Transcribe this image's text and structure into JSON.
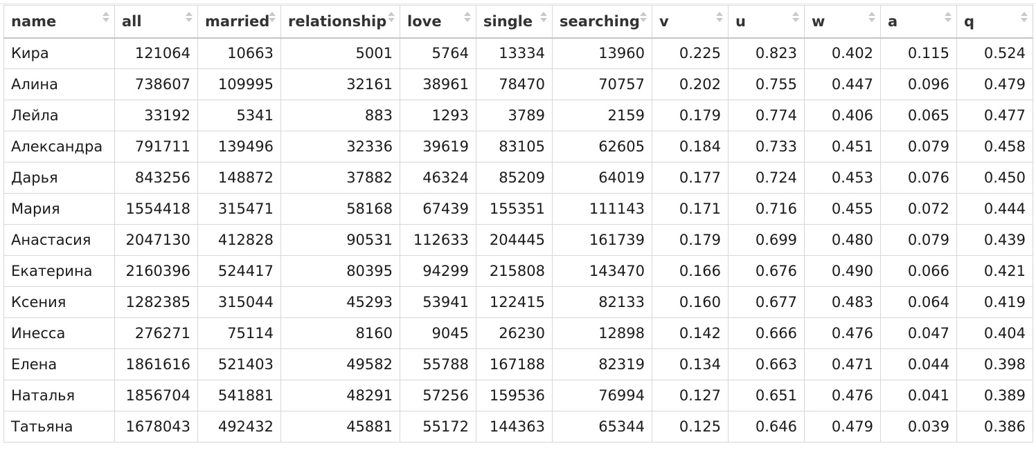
{
  "table": {
    "columns": [
      {
        "key": "name",
        "label": "name"
      },
      {
        "key": "all",
        "label": "all"
      },
      {
        "key": "married",
        "label": "married"
      },
      {
        "key": "relationship",
        "label": "relationship"
      },
      {
        "key": "love",
        "label": "love"
      },
      {
        "key": "single",
        "label": "single"
      },
      {
        "key": "searching",
        "label": "searching"
      },
      {
        "key": "v",
        "label": "v"
      },
      {
        "key": "u",
        "label": "u"
      },
      {
        "key": "w",
        "label": "w"
      },
      {
        "key": "a",
        "label": "a"
      },
      {
        "key": "q",
        "label": "q"
      }
    ],
    "sort_icon": "sort-updown-icon",
    "rows": [
      [
        "Кира",
        "121064",
        "10663",
        "5001",
        "5764",
        "13334",
        "13960",
        "0.225",
        "0.823",
        "0.402",
        "0.115",
        "0.524"
      ],
      [
        "Алина",
        "738607",
        "109995",
        "32161",
        "38961",
        "78470",
        "70757",
        "0.202",
        "0.755",
        "0.447",
        "0.096",
        "0.479"
      ],
      [
        "Лейла",
        "33192",
        "5341",
        "883",
        "1293",
        "3789",
        "2159",
        "0.179",
        "0.774",
        "0.406",
        "0.065",
        "0.477"
      ],
      [
        "Александра",
        "791711",
        "139496",
        "32336",
        "39619",
        "83105",
        "62605",
        "0.184",
        "0.733",
        "0.451",
        "0.079",
        "0.458"
      ],
      [
        "Дарья",
        "843256",
        "148872",
        "37882",
        "46324",
        "85209",
        "64019",
        "0.177",
        "0.724",
        "0.453",
        "0.076",
        "0.450"
      ],
      [
        "Мария",
        "1554418",
        "315471",
        "58168",
        "67439",
        "155351",
        "111143",
        "0.171",
        "0.716",
        "0.455",
        "0.072",
        "0.444"
      ],
      [
        "Анастасия",
        "2047130",
        "412828",
        "90531",
        "112633",
        "204445",
        "161739",
        "0.179",
        "0.699",
        "0.480",
        "0.079",
        "0.439"
      ],
      [
        "Екатерина",
        "2160396",
        "524417",
        "80395",
        "94299",
        "215808",
        "143470",
        "0.166",
        "0.676",
        "0.490",
        "0.066",
        "0.421"
      ],
      [
        "Ксения",
        "1282385",
        "315044",
        "45293",
        "53941",
        "122415",
        "82133",
        "0.160",
        "0.677",
        "0.483",
        "0.064",
        "0.419"
      ],
      [
        "Инесса",
        "276271",
        "75114",
        "8160",
        "9045",
        "26230",
        "12898",
        "0.142",
        "0.666",
        "0.476",
        "0.047",
        "0.404"
      ],
      [
        "Елена",
        "1861616",
        "521403",
        "49582",
        "55788",
        "167188",
        "82319",
        "0.134",
        "0.663",
        "0.471",
        "0.044",
        "0.398"
      ],
      [
        "Наталья",
        "1856704",
        "541881",
        "48291",
        "57256",
        "159536",
        "76994",
        "0.127",
        "0.651",
        "0.476",
        "0.041",
        "0.389"
      ],
      [
        "Татьяна",
        "1678043",
        "492432",
        "45881",
        "55172",
        "144363",
        "65344",
        "0.125",
        "0.646",
        "0.479",
        "0.039",
        "0.386"
      ]
    ]
  }
}
